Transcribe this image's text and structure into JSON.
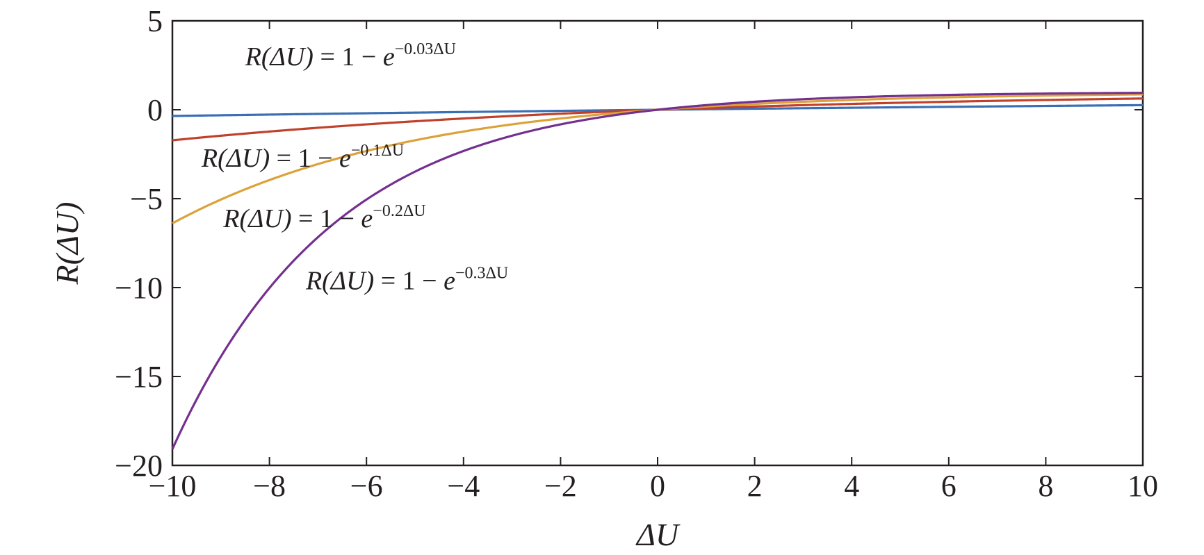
{
  "chart_data": {
    "type": "line",
    "xlabel": "ΔU",
    "ylabel": "R(ΔU)",
    "xlim": [
      -10,
      10
    ],
    "ylim": [
      -20,
      5
    ],
    "xticks": [
      -10,
      -8,
      -6,
      -4,
      -2,
      0,
      2,
      4,
      6,
      8,
      10
    ],
    "yticks": [
      5,
      0,
      -5,
      -10,
      -15,
      -20
    ],
    "xtick_labels": [
      "−10",
      "−8",
      "−6",
      "−4",
      "−2",
      "0",
      "2",
      "4",
      "6",
      "8",
      "10"
    ],
    "ytick_labels": [
      "5",
      "0",
      "−5",
      "−10",
      "−15",
      "−20"
    ],
    "grid": false,
    "x": [
      -10,
      -9,
      -8,
      -7,
      -6,
      -5,
      -4,
      -3,
      -2,
      -1,
      0,
      1,
      2,
      3,
      4,
      5,
      6,
      7,
      8,
      9,
      10
    ],
    "series": [
      {
        "k": 0.03,
        "color": "#3a6fb5",
        "label": {
          "lhs": "R(ΔU)",
          "eq": " = 1 − ",
          "base": "e",
          "exp": "−0.03ΔU"
        },
        "values": [
          -0.35,
          -0.31,
          -0.27,
          -0.23,
          -0.2,
          -0.16,
          -0.13,
          -0.09,
          -0.06,
          -0.03,
          0,
          0.03,
          0.06,
          0.09,
          0.11,
          0.14,
          0.16,
          0.19,
          0.21,
          0.24,
          0.26
        ]
      },
      {
        "k": 0.1,
        "color": "#c0412b",
        "label": {
          "lhs": "R(ΔU)",
          "eq": " = 1 − ",
          "base": "e",
          "exp": "−0.1ΔU"
        },
        "values": [
          -1.72,
          -1.46,
          -1.23,
          -1.01,
          -0.82,
          -0.65,
          -0.49,
          -0.35,
          -0.22,
          -0.11,
          0,
          0.1,
          0.18,
          0.26,
          0.33,
          0.39,
          0.45,
          0.5,
          0.55,
          0.59,
          0.63
        ]
      },
      {
        "k": 0.2,
        "color": "#dca239",
        "label": {
          "lhs": "R(ΔU)",
          "eq": " = 1 − ",
          "base": "e",
          "exp": "−0.2ΔU"
        },
        "values": [
          -6.39,
          -5.05,
          -3.95,
          -3.06,
          -2.32,
          -1.72,
          -1.23,
          -0.82,
          -0.49,
          -0.22,
          0,
          0.18,
          0.33,
          0.45,
          0.55,
          0.63,
          0.7,
          0.75,
          0.8,
          0.83,
          0.86
        ]
      },
      {
        "k": 0.3,
        "color": "#74308f",
        "label": {
          "lhs": "R(ΔU)",
          "eq": " = 1 − ",
          "base": "e",
          "exp": "−0.3ΔU"
        },
        "values": [
          -19.09,
          -13.88,
          -10.02,
          -7.17,
          -5.05,
          -3.48,
          -2.32,
          -1.46,
          -0.82,
          -0.35,
          0,
          0.26,
          0.45,
          0.59,
          0.7,
          0.78,
          0.83,
          0.88,
          0.91,
          0.93,
          0.95
        ]
      }
    ]
  }
}
